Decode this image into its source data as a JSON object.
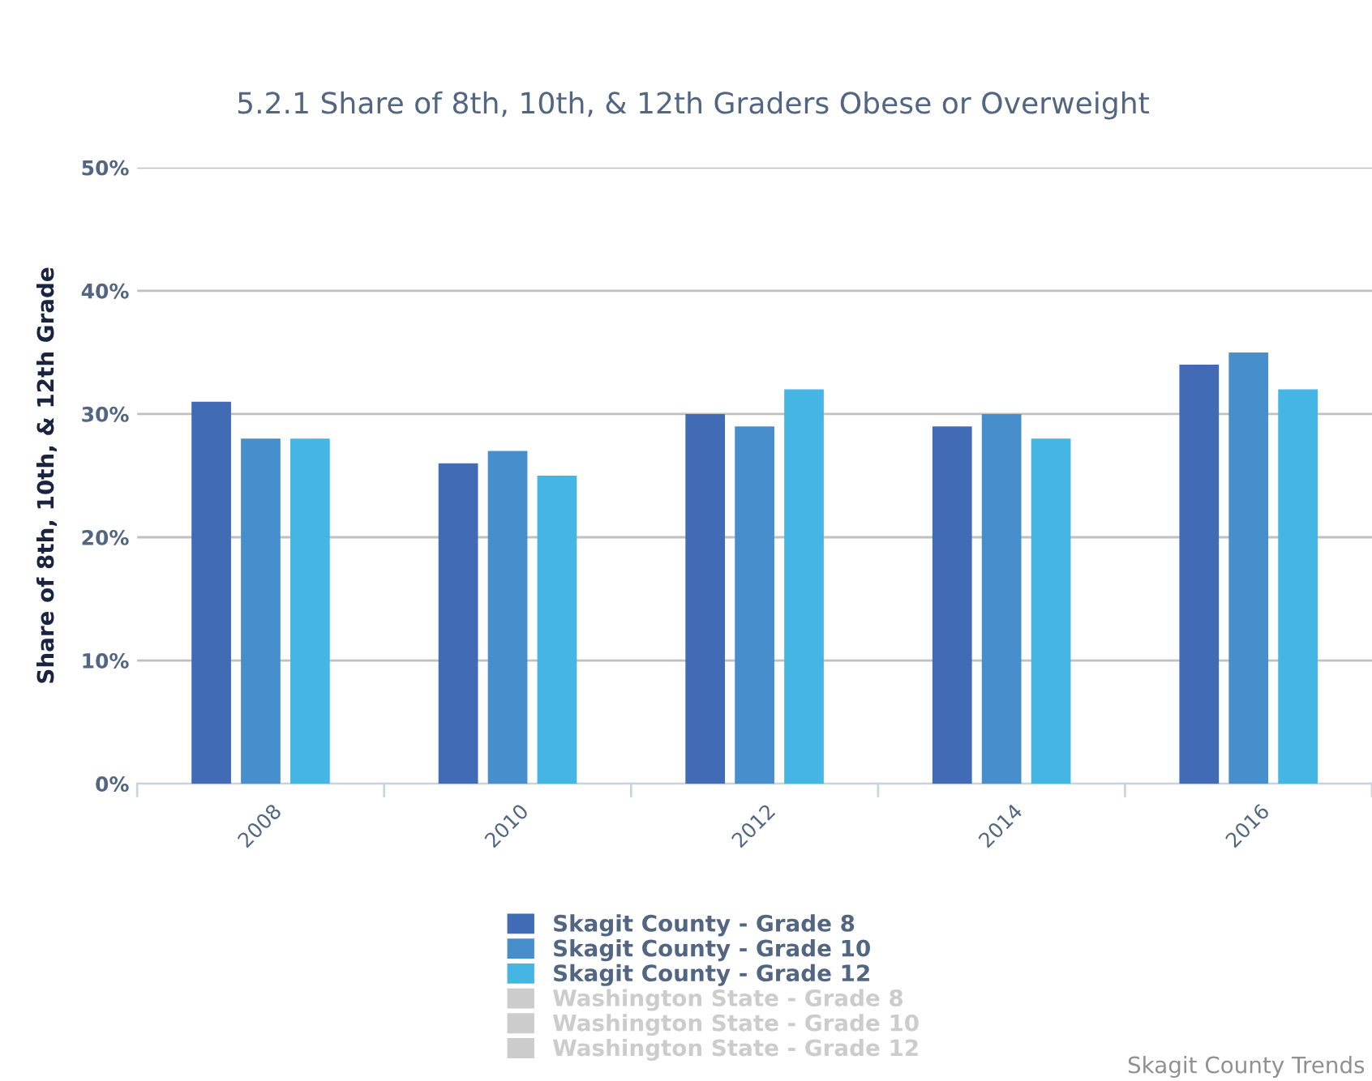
{
  "chart_data": {
    "type": "bar",
    "title": "5.2.1 Share of 8th, 10th, & 12th Graders Obese or Overweight",
    "ylabel": "Share of 8th, 10th, & 12th Grade",
    "categories": [
      "2008",
      "2010",
      "2012",
      "2014",
      "2016"
    ],
    "series": [
      {
        "name": "Skagit County - Grade 8",
        "color": "#416bb5",
        "values": [
          31,
          26,
          30,
          29,
          34
        ]
      },
      {
        "name": "Skagit County - Grade 10",
        "color": "#478fcc",
        "values": [
          28,
          27,
          29,
          30,
          35
        ]
      },
      {
        "name": "Skagit County - Grade 12",
        "color": "#45b6e3",
        "values": [
          28,
          25,
          32,
          28,
          32
        ]
      },
      {
        "name": "Washington State - Grade 8",
        "color": "#cccccc",
        "values": [
          null,
          null,
          null,
          null,
          null
        ]
      },
      {
        "name": "Washington State - Grade 10",
        "color": "#cccccc",
        "values": [
          null,
          null,
          null,
          null,
          null
        ]
      },
      {
        "name": "Washington State - Grade 12",
        "color": "#cccccc",
        "values": [
          null,
          null,
          null,
          null,
          null
        ]
      }
    ],
    "ylim": [
      0,
      50
    ],
    "yticks": [
      {
        "value": 0,
        "label": "0%"
      },
      {
        "value": 10,
        "label": "10%"
      },
      {
        "value": 20,
        "label": "20%"
      },
      {
        "value": 30,
        "label": "30%"
      },
      {
        "value": 40,
        "label": "40%"
      },
      {
        "value": 50,
        "label": "50%"
      }
    ],
    "grid": "y",
    "legend": "bottom",
    "annotations": [
      "Skagit County Trends"
    ]
  }
}
